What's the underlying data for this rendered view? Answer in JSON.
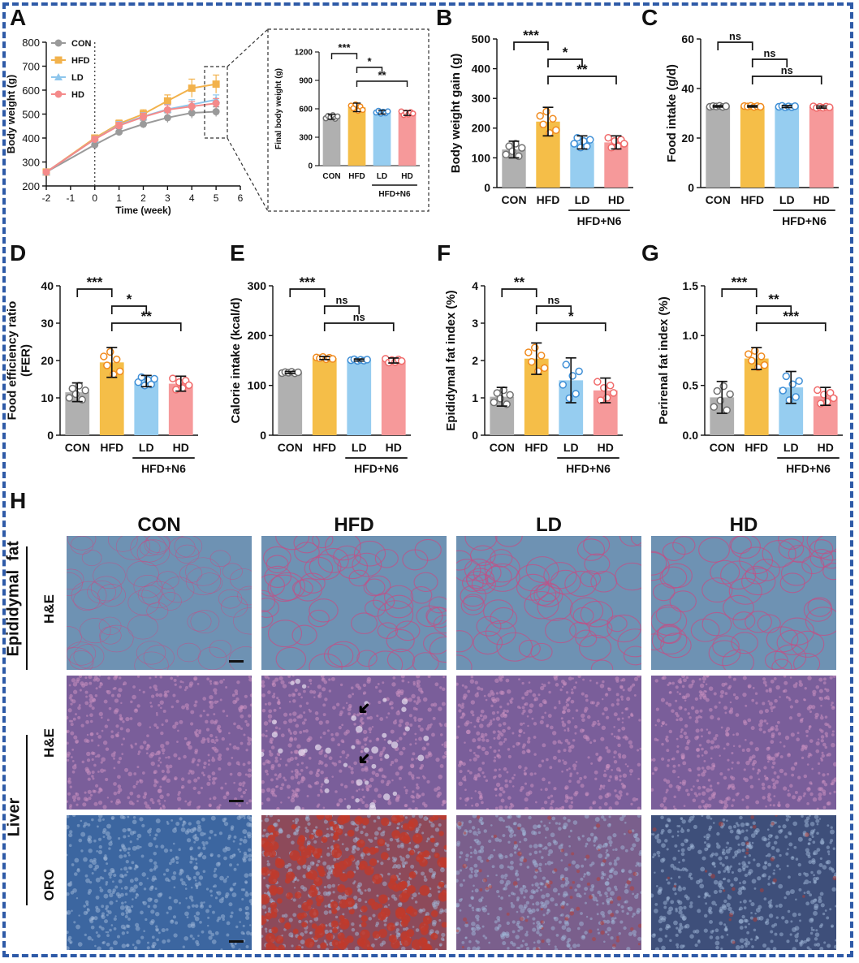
{
  "panel_labels": [
    "A",
    "B",
    "C",
    "D",
    "E",
    "F",
    "G",
    "H"
  ],
  "groups": [
    "CON",
    "HFD",
    "LD",
    "HD"
  ],
  "group_colors": {
    "CON": "#b0b0b0",
    "HFD": "#f5be48",
    "LD": "#96cdf0",
    "HD": "#f6999a"
  },
  "point_colors": {
    "CON": "#707070",
    "HFD": "#f08a1e",
    "LD": "#3f8fd6",
    "HD": "#f06a6a"
  },
  "treatment_label": "HFD+N6",
  "chart_data": [
    {
      "id": "A",
      "type": "line",
      "xlabel": "Time (week)",
      "ylabel": "Body weight (g)",
      "x": [
        -2,
        0,
        1,
        2,
        3,
        4,
        5
      ],
      "xticks": [
        "-2",
        "-1",
        "0",
        "1",
        "2",
        "3",
        "4",
        "5",
        "6"
      ],
      "xlim": [
        -2,
        6
      ],
      "ylim": [
        200,
        800
      ],
      "yticks": [
        "200",
        "300",
        "400",
        "500",
        "600",
        "700",
        "800"
      ],
      "series": [
        {
          "name": "CON",
          "values": [
            258,
            372,
            425,
            458,
            485,
            505,
            510
          ],
          "err": [
            8,
            12,
            14,
            16,
            20,
            22,
            20
          ]
        },
        {
          "name": "HFD",
          "values": [
            258,
            400,
            460,
            500,
            555,
            608,
            625
          ],
          "err": [
            8,
            12,
            15,
            18,
            25,
            38,
            38
          ]
        },
        {
          "name": "LD",
          "values": [
            258,
            395,
            455,
            490,
            520,
            540,
            560
          ],
          "err": [
            8,
            12,
            14,
            16,
            20,
            20,
            20
          ]
        },
        {
          "name": "HD",
          "values": [
            258,
            395,
            452,
            488,
            518,
            532,
            545
          ],
          "err": [
            8,
            12,
            14,
            16,
            20,
            20,
            20
          ]
        }
      ]
    },
    {
      "id": "A-inset",
      "type": "bar",
      "ylabel": "Final body weight (g)",
      "categories": [
        "CON",
        "HFD",
        "LD",
        "HD"
      ],
      "values": [
        515,
        615,
        565,
        555
      ],
      "err": [
        25,
        45,
        20,
        25
      ],
      "ylim": [
        0,
        1200
      ],
      "yticks": [
        "0",
        "300",
        "600",
        "900",
        "1200"
      ],
      "significance": [
        {
          "from": "CON",
          "to": "HFD",
          "label": "***"
        },
        {
          "from": "HFD",
          "to": "LD",
          "label": "*"
        },
        {
          "from": "HFD",
          "to": "HD",
          "label": "**"
        }
      ]
    },
    {
      "id": "B",
      "type": "bar",
      "ylabel": "Body weight gain (g)",
      "categories": [
        "CON",
        "HFD",
        "LD",
        "HD"
      ],
      "values": [
        128,
        222,
        152,
        152
      ],
      "err": [
        28,
        48,
        22,
        22
      ],
      "ylim": [
        0,
        500
      ],
      "yticks": [
        "0",
        "100",
        "200",
        "300",
        "400",
        "500"
      ],
      "significance": [
        {
          "from": "CON",
          "to": "HFD",
          "label": "***"
        },
        {
          "from": "HFD",
          "to": "LD",
          "label": "*"
        },
        {
          "from": "HFD",
          "to": "HD",
          "label": "**"
        }
      ]
    },
    {
      "id": "C",
      "type": "bar",
      "ylabel": "Food intake (g/d)",
      "categories": [
        "CON",
        "HFD",
        "LD",
        "HD"
      ],
      "values": [
        32.8,
        32.8,
        32.7,
        32.5
      ],
      "err": [
        0.3,
        0.3,
        0.4,
        0.4
      ],
      "ylim": [
        0,
        60
      ],
      "yticks": [
        "0",
        "20",
        "40",
        "60"
      ],
      "significance": [
        {
          "from": "CON",
          "to": "HFD",
          "label": "ns"
        },
        {
          "from": "HFD",
          "to": "LD",
          "label": "ns"
        },
        {
          "from": "HFD",
          "to": "HD",
          "label": "ns"
        }
      ]
    },
    {
      "id": "D",
      "type": "bar",
      "ylabel": "Food efficiency ratio\n(FER)",
      "categories": [
        "CON",
        "HFD",
        "LD",
        "HD"
      ],
      "values": [
        11.5,
        19.5,
        14.5,
        13.8
      ],
      "err": [
        2.5,
        4.0,
        1.5,
        2.0
      ],
      "ylim": [
        0,
        40
      ],
      "yticks": [
        "0",
        "10",
        "20",
        "30",
        "40"
      ],
      "significance": [
        {
          "from": "CON",
          "to": "HFD",
          "label": "***"
        },
        {
          "from": "HFD",
          "to": "LD",
          "label": "*"
        },
        {
          "from": "HFD",
          "to": "HD",
          "label": "**"
        }
      ]
    },
    {
      "id": "E",
      "type": "bar",
      "ylabel": "Calorie intake (kcal/d)",
      "categories": [
        "CON",
        "HFD",
        "LD",
        "HD"
      ],
      "values": [
        126,
        155,
        151,
        150
      ],
      "err": [
        2,
        3,
        2,
        5
      ],
      "ylim": [
        0,
        300
      ],
      "yticks": [
        "0",
        "100",
        "200",
        "300"
      ],
      "significance": [
        {
          "from": "CON",
          "to": "HFD",
          "label": "***"
        },
        {
          "from": "HFD",
          "to": "LD",
          "label": "ns"
        },
        {
          "from": "HFD",
          "to": "HD",
          "label": "ns"
        }
      ]
    },
    {
      "id": "F",
      "type": "bar",
      "ylabel": "Epididymal fat index (%)",
      "categories": [
        "CON",
        "HFD",
        "LD",
        "HD"
      ],
      "values": [
        1.03,
        2.05,
        1.47,
        1.2
      ],
      "err": [
        0.25,
        0.42,
        0.6,
        0.33
      ],
      "ylim": [
        0,
        4
      ],
      "yticks": [
        "0",
        "1",
        "2",
        "3",
        "4"
      ],
      "significance": [
        {
          "from": "CON",
          "to": "HFD",
          "label": "**"
        },
        {
          "from": "HFD",
          "to": "LD",
          "label": "ns"
        },
        {
          "from": "HFD",
          "to": "HD",
          "label": "*"
        }
      ]
    },
    {
      "id": "G",
      "type": "bar",
      "ylabel": "Perirenal fat index (%)",
      "categories": [
        "CON",
        "HFD",
        "LD",
        "HD"
      ],
      "values": [
        0.38,
        0.77,
        0.48,
        0.39
      ],
      "err": [
        0.16,
        0.11,
        0.16,
        0.09
      ],
      "ylim": [
        0,
        1.5
      ],
      "yticks": [
        "0.0",
        "0.5",
        "1.0",
        "1.5"
      ],
      "significance": [
        {
          "from": "CON",
          "to": "HFD",
          "label": "***"
        },
        {
          "from": "HFD",
          "to": "LD",
          "label": "**"
        },
        {
          "from": "HFD",
          "to": "HD",
          "label": "***"
        }
      ]
    }
  ],
  "histology": {
    "columns": [
      "CON",
      "HFD",
      "LD",
      "HD"
    ],
    "rows": [
      {
        "tissue": "Epididymal  fat",
        "stain": "H&E"
      },
      {
        "tissue": "Liver",
        "stain": "H&E"
      },
      {
        "tissue": "Liver",
        "stain": "ORO"
      }
    ],
    "colors": {
      "fat_bg": "#6e92b3",
      "fat_line": "#c24f86",
      "liver_he_bg": "#7a5e9a",
      "liver_he_dot": "#c890c0",
      "oro_bg": "#3c66a0",
      "oro_dot": "#9fb7d8",
      "oro_red": "#c0392b"
    }
  }
}
